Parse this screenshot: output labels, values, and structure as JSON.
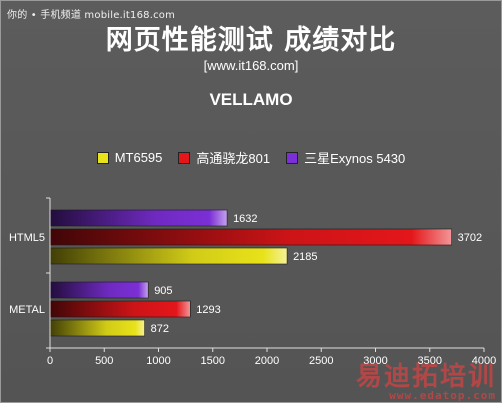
{
  "header": {
    "source": "你的 • 手机频道 mobile.it168.com",
    "title": "网页性能测试 成绩对比",
    "site": "[www.it168.com]",
    "subtitle": "VELLAMO"
  },
  "colors": {
    "background": "#585858",
    "MT6595": "#e8e21a",
    "高通骁龙801": "#e4161a",
    "三星Exynos 5430": "#7b2fd6"
  },
  "watermark": {
    "line1": "易迪拓培训",
    "line2": "www.edatop.com"
  },
  "chart_data": {
    "type": "bar",
    "orientation": "horizontal",
    "title": "VELLAMO",
    "categories": [
      "HTML5",
      "METAL"
    ],
    "series": [
      {
        "name": "三星Exynos 5430",
        "values": [
          1632,
          905
        ]
      },
      {
        "name": "高通骁龙801",
        "values": [
          3702,
          1293
        ]
      },
      {
        "name": "MT6595",
        "values": [
          2185,
          872
        ]
      }
    ],
    "legend": [
      "MT6595",
      "高通骁龙801",
      "三星Exynos 5430"
    ],
    "legend_position": "top",
    "xlim": [
      0,
      4000
    ],
    "xticks": [
      0,
      500,
      1000,
      1500,
      2000,
      2500,
      3000,
      3500,
      4000
    ],
    "xlabel": "",
    "ylabel": "",
    "grid": false
  }
}
